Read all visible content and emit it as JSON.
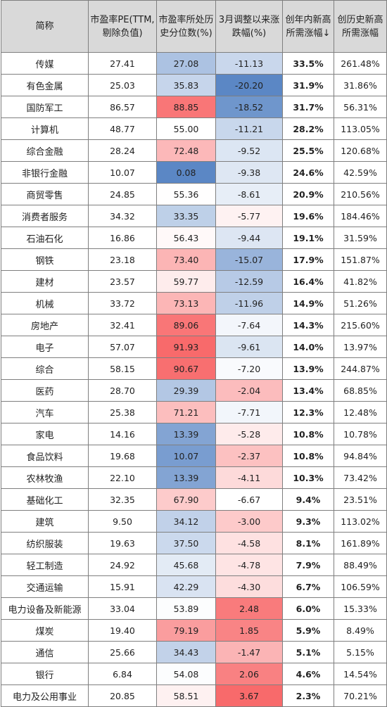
{
  "headers": [
    "简称",
    "市盈率PE(TTM,剔除负值)",
    "市盈率所处历史分位数(%)",
    "3月调整以来涨跌幅(%)",
    "创年内新高所需涨幅↓",
    "创历史新高所需涨幅"
  ],
  "rows": [
    {
      "name": "传媒",
      "pe": "27.41",
      "pct": "27.08",
      "chg": "-11.13",
      "ytd": "33.5%",
      "hist": "261.48%"
    },
    {
      "name": "有色金属",
      "pe": "25.03",
      "pct": "35.83",
      "chg": "-20.20",
      "ytd": "31.9%",
      "hist": "31.86%"
    },
    {
      "name": "国防军工",
      "pe": "86.57",
      "pct": "88.85",
      "chg": "-18.52",
      "ytd": "31.7%",
      "hist": "56.31%"
    },
    {
      "name": "计算机",
      "pe": "48.77",
      "pct": "55.00",
      "chg": "-11.21",
      "ytd": "28.2%",
      "hist": "113.05%"
    },
    {
      "name": "综合金融",
      "pe": "28.24",
      "pct": "72.48",
      "chg": "-9.52",
      "ytd": "25.5%",
      "hist": "120.68%"
    },
    {
      "name": "非银行金融",
      "pe": "10.07",
      "pct": "0.08",
      "chg": "-9.38",
      "ytd": "24.6%",
      "hist": "42.59%"
    },
    {
      "name": "商贸零售",
      "pe": "24.85",
      "pct": "55.36",
      "chg": "-8.61",
      "ytd": "20.9%",
      "hist": "210.56%"
    },
    {
      "name": "消费者服务",
      "pe": "34.32",
      "pct": "33.35",
      "chg": "-5.77",
      "ytd": "19.6%",
      "hist": "184.46%"
    },
    {
      "name": "石油石化",
      "pe": "16.86",
      "pct": "56.43",
      "chg": "-9.44",
      "ytd": "19.1%",
      "hist": "31.59%"
    },
    {
      "name": "钢铁",
      "pe": "23.18",
      "pct": "73.40",
      "chg": "-15.07",
      "ytd": "17.9%",
      "hist": "151.87%"
    },
    {
      "name": "建材",
      "pe": "23.57",
      "pct": "59.77",
      "chg": "-12.59",
      "ytd": "16.4%",
      "hist": "41.82%"
    },
    {
      "name": "机械",
      "pe": "33.72",
      "pct": "73.13",
      "chg": "-11.96",
      "ytd": "14.9%",
      "hist": "51.26%"
    },
    {
      "name": "房地产",
      "pe": "32.41",
      "pct": "89.06",
      "chg": "-7.64",
      "ytd": "14.3%",
      "hist": "215.60%"
    },
    {
      "name": "电子",
      "pe": "57.07",
      "pct": "91.93",
      "chg": "-9.61",
      "ytd": "14.0%",
      "hist": "13.97%"
    },
    {
      "name": "综合",
      "pe": "58.15",
      "pct": "90.67",
      "chg": "-7.20",
      "ytd": "13.9%",
      "hist": "244.87%"
    },
    {
      "name": "医药",
      "pe": "28.70",
      "pct": "29.39",
      "chg": "-2.04",
      "ytd": "13.4%",
      "hist": "68.85%"
    },
    {
      "name": "汽车",
      "pe": "25.38",
      "pct": "71.21",
      "chg": "-7.71",
      "ytd": "12.3%",
      "hist": "12.48%"
    },
    {
      "name": "家电",
      "pe": "14.16",
      "pct": "13.39",
      "chg": "-5.28",
      "ytd": "10.8%",
      "hist": "10.78%"
    },
    {
      "name": "食品饮料",
      "pe": "19.68",
      "pct": "10.07",
      "chg": "-2.37",
      "ytd": "10.8%",
      "hist": "94.84%"
    },
    {
      "name": "农林牧渔",
      "pe": "22.10",
      "pct": "13.39",
      "chg": "-4.11",
      "ytd": "10.3%",
      "hist": "73.42%"
    },
    {
      "name": "基础化工",
      "pe": "32.35",
      "pct": "67.90",
      "chg": "-6.67",
      "ytd": "9.4%",
      "hist": "23.51%"
    },
    {
      "name": "建筑",
      "pe": "9.50",
      "pct": "34.12",
      "chg": "-3.00",
      "ytd": "9.3%",
      "hist": "113.02%"
    },
    {
      "name": "纺织服装",
      "pe": "19.63",
      "pct": "37.50",
      "chg": "-4.58",
      "ytd": "8.1%",
      "hist": "161.89%"
    },
    {
      "name": "轻工制造",
      "pe": "24.92",
      "pct": "45.68",
      "chg": "-4.78",
      "ytd": "7.9%",
      "hist": "88.49%"
    },
    {
      "name": "交通运输",
      "pe": "15.91",
      "pct": "42.29",
      "chg": "-4.30",
      "ytd": "6.7%",
      "hist": "106.59%"
    },
    {
      "name": "电力设备及新能源",
      "pe": "33.04",
      "pct": "53.89",
      "chg": "2.48",
      "ytd": "6.0%",
      "hist": "15.33%"
    },
    {
      "name": "煤炭",
      "pe": "19.40",
      "pct": "79.19",
      "chg": "1.85",
      "ytd": "5.9%",
      "hist": "8.49%"
    },
    {
      "name": "通信",
      "pe": "25.66",
      "pct": "34.43",
      "chg": "-1.47",
      "ytd": "5.1%",
      "hist": "5.15%"
    },
    {
      "name": "银行",
      "pe": "6.84",
      "pct": "54.08",
      "chg": "2.06",
      "ytd": "4.6%",
      "hist": "14.54%"
    },
    {
      "name": "电力及公用事业",
      "pe": "20.85",
      "pct": "58.51",
      "chg": "3.67",
      "ytd": "2.3%",
      "hist": "70.21%"
    }
  ],
  "colors": {
    "header_bg": "#d9d9d9",
    "low": "#5b87c5",
    "mid": "#ffffff",
    "high": "#f86a6b"
  }
}
